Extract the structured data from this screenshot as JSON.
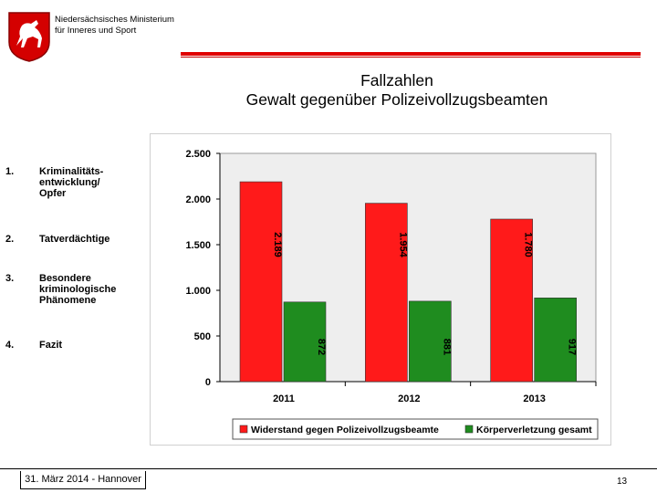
{
  "header": {
    "ministry_line1": "Niedersächsisches Ministerium",
    "ministry_line2": "für Inneres und Sport",
    "title_line1": "Fallzahlen",
    "title_line2": "Gewalt gegenüber Polizeivollzugsbeamten"
  },
  "nav": {
    "items": [
      {
        "num": "1.",
        "label": "Kriminalitäts-\nentwicklung/\nOpfer"
      },
      {
        "num": "2.",
        "label": "Tatverdächtige"
      },
      {
        "num": "3.",
        "label": "Besondere\nkriminologische\nPhänomene"
      },
      {
        "num": "4.",
        "label": "Fazit"
      }
    ]
  },
  "footer": {
    "date": "31. März 2014 - Hannover",
    "page": "13"
  },
  "colors": {
    "accent_red": "#e00000",
    "series_red": "#ff1a1a",
    "series_green": "#1f8c1f",
    "plot_bg": "#eeeeee"
  },
  "chart_data": {
    "type": "bar",
    "categories": [
      "2011",
      "2012",
      "2013"
    ],
    "series": [
      {
        "name": "Widerstand gegen Polizeivollzugsbeamte",
        "values": [
          2189,
          1954,
          1780
        ],
        "labels": [
          "2.189",
          "1.954",
          "1.780"
        ],
        "color": "#ff1a1a"
      },
      {
        "name": "Körperverletzung gesamt",
        "values": [
          872,
          881,
          917
        ],
        "labels": [
          "872",
          "881",
          "917"
        ],
        "color": "#1f8c1f"
      }
    ],
    "ylim": [
      0,
      2500
    ],
    "yticks": [
      0,
      500,
      1000,
      1500,
      2000,
      2500
    ],
    "ytick_labels": [
      "0",
      "500",
      "1.000",
      "1.500",
      "2.000",
      "2.500"
    ],
    "grid": false,
    "legend_position": "bottom"
  }
}
